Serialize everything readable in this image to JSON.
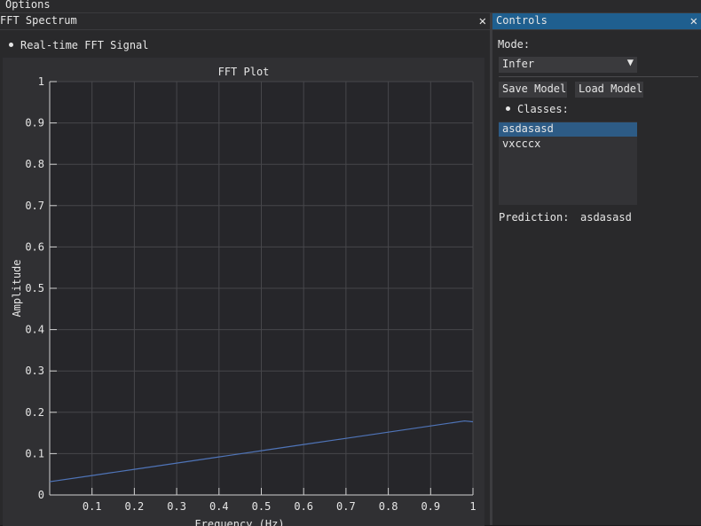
{
  "menubar": {
    "options_label": "Options"
  },
  "fft_window": {
    "title": "FFT Spectrum",
    "close_glyph": "✕",
    "tree_node_label": "Real-time FFT Signal",
    "plot_title": "FFT Plot"
  },
  "controls_window": {
    "title": "Controls",
    "close_glyph": "✕",
    "mode_label": "Mode:",
    "mode_value": "Infer",
    "mode_arrow": "▼",
    "save_button": "Save Model",
    "load_button": "Load Model",
    "classes_label": "Classes:",
    "classes": [
      {
        "label": "asdasasd",
        "selected": true
      },
      {
        "label": "vxcccx",
        "selected": false
      }
    ],
    "prediction_label": "Prediction:",
    "prediction_value": "asdasasd"
  },
  "colors": {
    "line": "#4f74b8",
    "grid": "#47474b",
    "axis": "#d0d0d0",
    "active_title": "#1f5f8f",
    "selected_item": "#2d5b85"
  },
  "chart_data": {
    "type": "line",
    "title": "FFT Plot",
    "xlabel": "Frequency (Hz)",
    "ylabel": "Amplitude",
    "xlim": [
      0,
      1
    ],
    "ylim": [
      0,
      1
    ],
    "grid": true,
    "x_ticks": [
      0.1,
      0.2,
      0.3,
      0.4,
      0.5,
      0.6,
      0.7,
      0.8,
      0.9,
      1
    ],
    "y_ticks": [
      0,
      0.1,
      0.2,
      0.3,
      0.4,
      0.5,
      0.6,
      0.7,
      0.8,
      0.9,
      1
    ],
    "series": [
      {
        "x": [
          0,
          0.1,
          0.2,
          0.3,
          0.4,
          0.5,
          0.6,
          0.7,
          0.8,
          0.9,
          0.98,
          1
        ],
        "values": [
          0.032,
          0.047,
          0.062,
          0.077,
          0.092,
          0.107,
          0.122,
          0.137,
          0.152,
          0.167,
          0.179,
          0.177
        ]
      }
    ]
  }
}
